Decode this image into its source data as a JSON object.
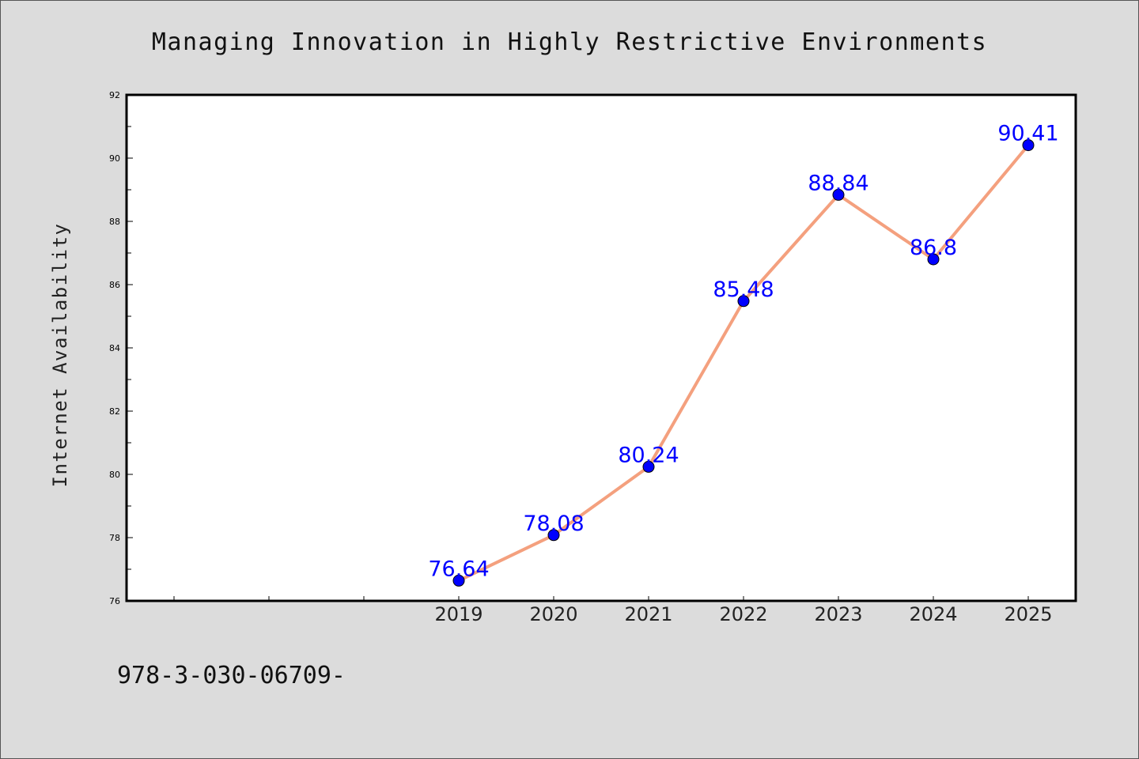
{
  "chart_data": {
    "type": "line",
    "title": "Managing Innovation in Highly Restrictive Environments",
    "xlabel": "",
    "ylabel": "Internet Availability",
    "x": [
      "2019",
      "2020",
      "2021",
      "2022",
      "2023",
      "2024",
      "2025"
    ],
    "x_axis_slots_before_first": 3,
    "series": [
      {
        "values": [
          76.64,
          78.08,
          80.24,
          85.48,
          88.84,
          86.8,
          90.41
        ]
      }
    ],
    "data_labels": [
      "76.64",
      "78.08",
      "80.24",
      "85.48",
      "88.84",
      "86.8",
      "90.41"
    ],
    "ylim": [
      76,
      92
    ],
    "yticks": [
      76,
      78,
      80,
      82,
      84,
      86,
      88,
      90,
      92
    ],
    "grid": false,
    "line_color": "#f4a07e",
    "marker_color": "#0000ff",
    "label_color": "#0000ff"
  },
  "footer_text": "978-3-030-06709-"
}
